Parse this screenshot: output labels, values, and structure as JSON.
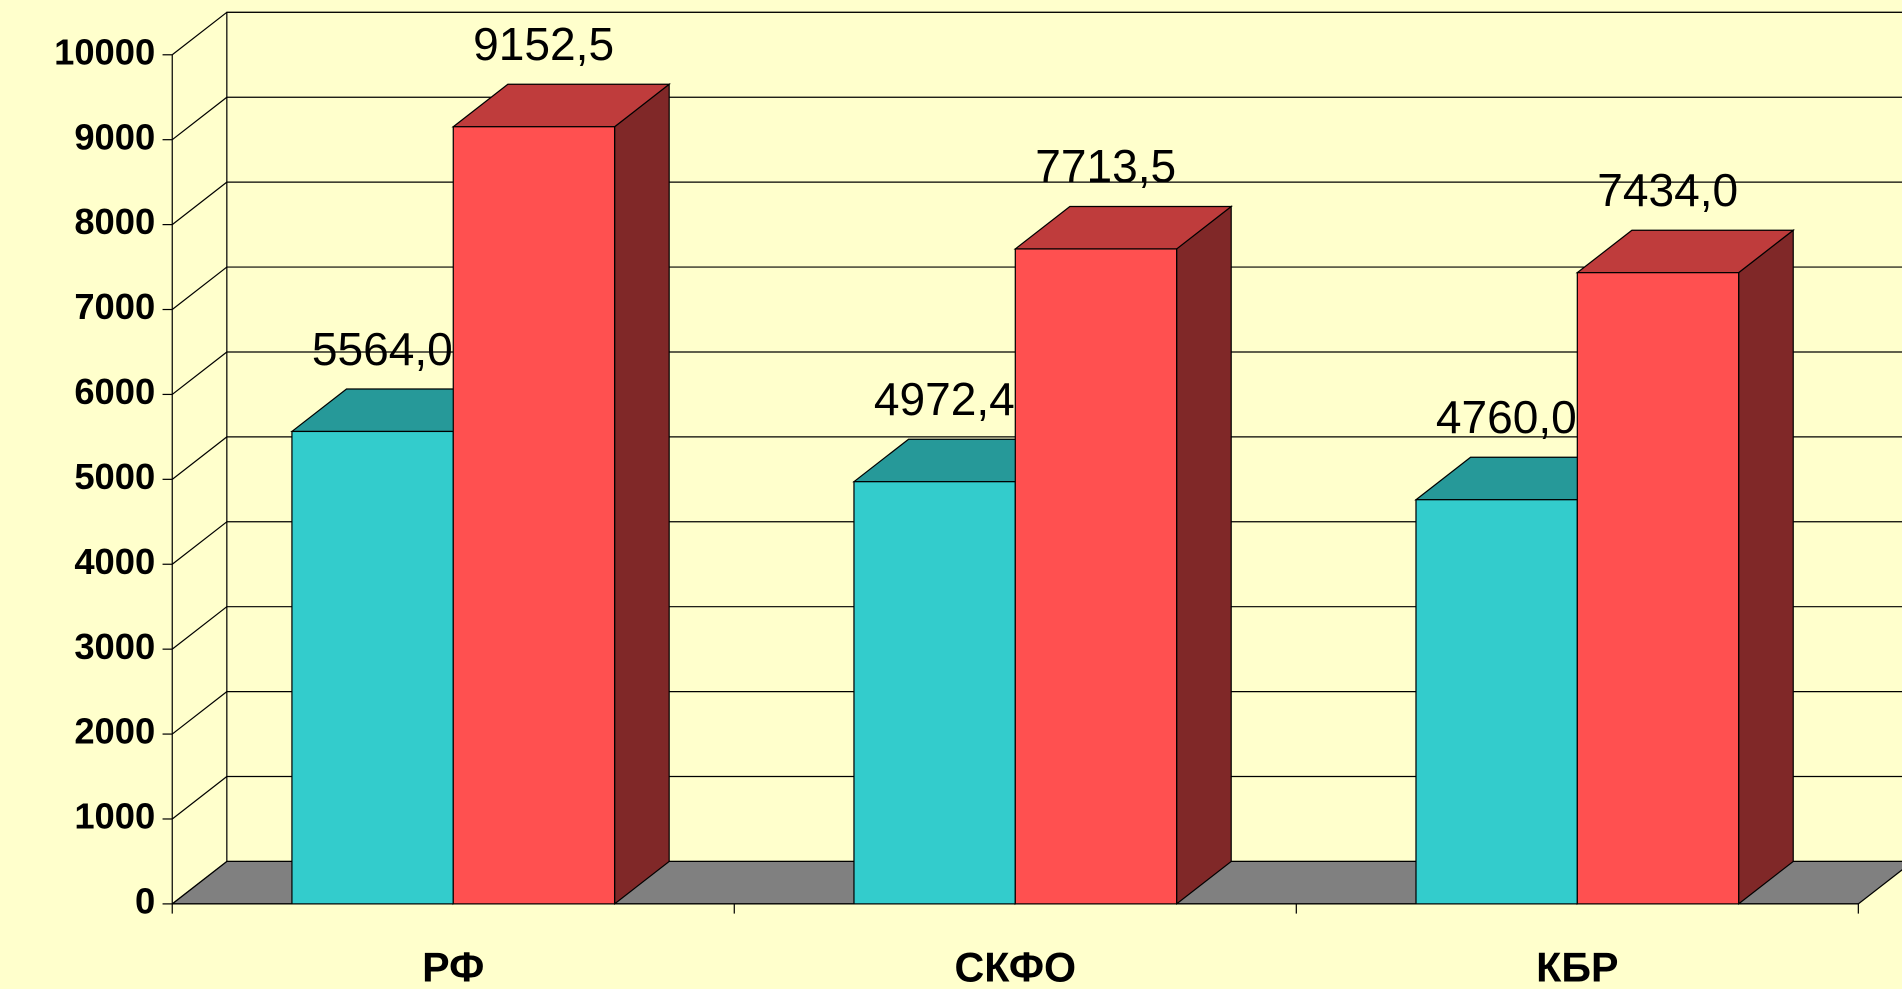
{
  "chart_data": {
    "type": "bar3d",
    "categories": [
      "РФ",
      "СКФО",
      "КБР"
    ],
    "series": [
      {
        "color": "#33cccc",
        "values": [
          5564.0,
          4972.4,
          4760.0
        ],
        "value_labels": [
          "5564,0",
          "4972,4",
          "4760,0"
        ]
      },
      {
        "color": "#ff5050",
        "values": [
          9152.5,
          7713.5,
          7434.0
        ],
        "value_labels": [
          "9152,5",
          "7713,5",
          "7434,0"
        ]
      }
    ],
    "ylim": [
      0,
      10000
    ],
    "yticks": [
      0,
      1000,
      2000,
      3000,
      4000,
      5000,
      6000,
      7000,
      8000,
      9000,
      10000
    ],
    "grid": true
  }
}
